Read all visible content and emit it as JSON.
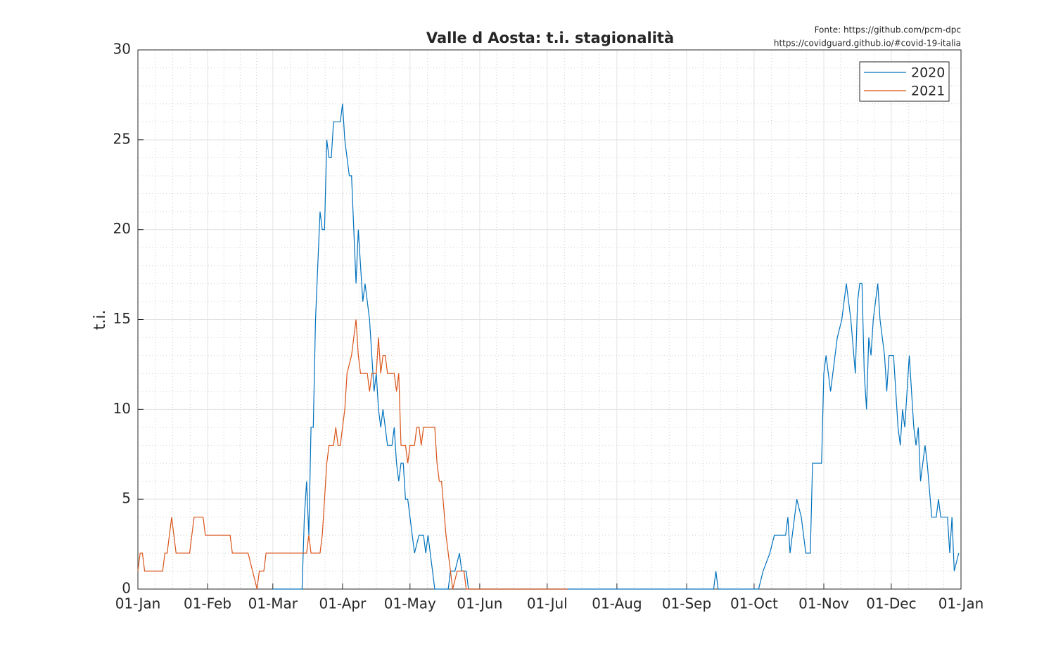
{
  "chart_data": {
    "type": "line",
    "title": "Valle d Aosta: t.i. stagionalità",
    "source": [
      "Fonte: https://github.com/pcm-dpc",
      "https://covidguard.github.io/#covid-19-italia"
    ],
    "y_label": "t.i.",
    "xlim": [
      1,
      367
    ],
    "xticks": [
      {
        "value": 1,
        "label": "01-Jan"
      },
      {
        "value": 32,
        "label": "01-Feb"
      },
      {
        "value": 61,
        "label": "01-Mar"
      },
      {
        "value": 92,
        "label": "01-Apr"
      },
      {
        "value": 122,
        "label": "01-May"
      },
      {
        "value": 153,
        "label": "01-Jun"
      },
      {
        "value": 183,
        "label": "01-Jul"
      },
      {
        "value": 214,
        "label": "01-Aug"
      },
      {
        "value": 245,
        "label": "01-Sep"
      },
      {
        "value": 275,
        "label": "01-Oct"
      },
      {
        "value": 306,
        "label": "01-Nov"
      },
      {
        "value": 336,
        "label": "01-Dec"
      },
      {
        "value": 367,
        "label": "01-Jan"
      }
    ],
    "ylim": [
      0,
      30
    ],
    "yticks": [
      0,
      5,
      10,
      15,
      20,
      25,
      30
    ],
    "grid": true,
    "minor_grid": true,
    "legend_position": "upper-right",
    "series": [
      {
        "name": "2020",
        "color": "#0072bd",
        "x": [
          61,
          74,
          75,
          76,
          77,
          78,
          79,
          80,
          82,
          83,
          84,
          85,
          86,
          87,
          88,
          90,
          91,
          92,
          93,
          94,
          95,
          96,
          97,
          98,
          99,
          100,
          101,
          102,
          103,
          104,
          105,
          106,
          107,
          108,
          109,
          110,
          111,
          112,
          114,
          115,
          116,
          117,
          118,
          119,
          120,
          121,
          122,
          123,
          124,
          126,
          128,
          129,
          130,
          131,
          132,
          133,
          139,
          140,
          142,
          144,
          145,
          147,
          148,
          257,
          258,
          259,
          277,
          279,
          282,
          284,
          289,
          290,
          291,
          293,
          294,
          296,
          297,
          298,
          300,
          301,
          305,
          306,
          307,
          308,
          309,
          311,
          312,
          314,
          315,
          316,
          318,
          320,
          321,
          322,
          323,
          324,
          325,
          326,
          327,
          328,
          330,
          331,
          333,
          334,
          335,
          337,
          338,
          339,
          340,
          341,
          342,
          344,
          346,
          347,
          348,
          349,
          351,
          352,
          354,
          356,
          357,
          358,
          361,
          362,
          363,
          364,
          366
        ],
        "values": [
          0,
          0,
          4,
          6,
          3,
          9,
          9,
          15,
          21,
          20,
          20,
          25,
          24,
          24,
          26,
          26,
          26,
          27,
          25,
          24,
          23,
          23,
          20,
          17,
          20,
          18,
          16,
          17,
          16,
          15,
          13,
          11,
          12,
          10,
          9,
          10,
          9,
          8,
          8,
          9,
          7,
          6,
          7,
          7,
          5,
          5,
          4,
          3,
          2,
          3,
          3,
          2,
          3,
          2,
          1,
          0,
          0,
          1,
          1,
          2,
          1,
          1,
          0,
          0,
          1,
          0,
          0,
          1,
          2,
          3,
          3,
          4,
          2,
          4,
          5,
          4,
          3,
          2,
          2,
          7,
          7,
          12,
          13,
          12,
          11,
          13,
          14,
          15,
          16,
          17,
          15,
          12,
          16,
          17,
          17,
          12,
          10,
          14,
          13,
          15,
          17,
          15,
          13,
          11,
          13,
          13,
          11,
          9,
          8,
          10,
          9,
          13,
          9,
          8,
          9,
          6,
          8,
          7,
          4,
          4,
          5,
          4,
          4,
          2,
          4,
          1,
          2
        ]
      },
      {
        "name": "2021",
        "color": "#d95319",
        "x": [
          1,
          2,
          3,
          4,
          12,
          13,
          14,
          15,
          16,
          17,
          18,
          24,
          25,
          26,
          30,
          31,
          42,
          43,
          50,
          52,
          54,
          55,
          57,
          58,
          76,
          77,
          78,
          82,
          83,
          84,
          85,
          86,
          88,
          89,
          90,
          91,
          92,
          93,
          94,
          96,
          97,
          98,
          99,
          100,
          103,
          104,
          105,
          107,
          108,
          109,
          110,
          111,
          112,
          115,
          116,
          117,
          118,
          120,
          121,
          122,
          124,
          125,
          126,
          127,
          128,
          133,
          134,
          135,
          136,
          138,
          140,
          141,
          143,
          146,
          147,
          192
        ],
        "values": [
          1,
          2,
          2,
          1,
          1,
          2,
          2,
          3,
          4,
          3,
          2,
          2,
          3,
          4,
          4,
          3,
          3,
          2,
          2,
          1,
          0,
          1,
          1,
          2,
          2,
          3,
          2,
          2,
          3,
          5,
          7,
          8,
          8,
          9,
          8,
          8,
          9,
          10,
          12,
          13,
          14,
          15,
          13,
          12,
          12,
          11,
          12,
          12,
          14,
          12,
          13,
          13,
          12,
          12,
          11,
          12,
          8,
          8,
          7,
          8,
          8,
          9,
          9,
          8,
          9,
          9,
          7,
          6,
          6,
          3,
          1,
          0,
          1,
          1,
          0,
          0
        ]
      }
    ]
  }
}
